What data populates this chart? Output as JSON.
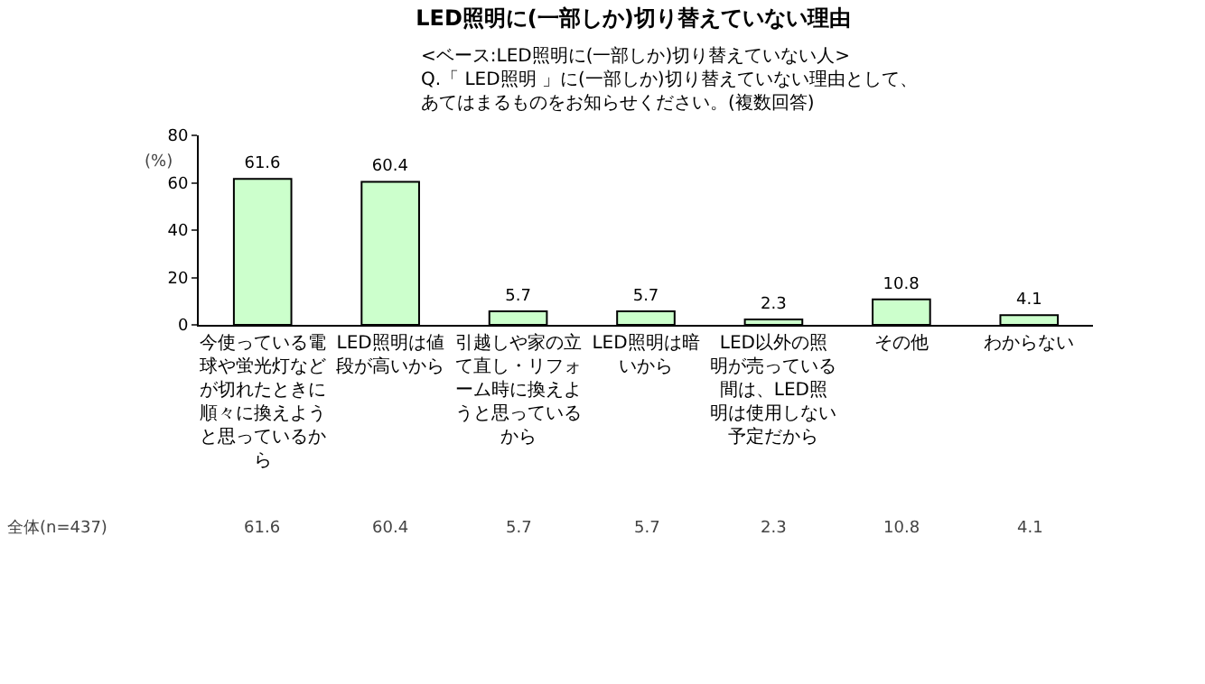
{
  "chart_data": {
    "type": "bar",
    "title": "LED照明に(一部しか)切り替えていない理由",
    "subtitle": "<ベース:LED照明に(一部しか)切り替えていない人>",
    "ylabel": "(%)",
    "annotations": [
      "Q.「 LED照明 」に(一部しか)切り替えていない理由として、あてはまるものをお知らせください。(複数回答)",
      "全体(n=437)"
    ],
    "categories": [
      "今使っている電球や蛍光灯などが切れたときに順々に換えようと思っているから",
      "LED照明は値段が高いから",
      "引越しや家の立て直し・リフォーム時に換えようと思っているから",
      "LED照明は暗いから",
      "LED以外の照明が売っている間は、LED照明は使用しない予定だから",
      "その他",
      "わからない"
    ],
    "values": [
      61.6,
      60.4,
      5.7,
      5.7,
      2.3,
      10.8,
      4.1
    ],
    "value_labels": [
      "61.6",
      "60.4",
      "5.7",
      "5.7",
      "2.3",
      "10.8",
      "4.1"
    ],
    "color": "#ccffcc",
    "ylim": [
      0,
      80
    ],
    "yticks": [
      0,
      20,
      40,
      60,
      80
    ],
    "grid": false,
    "data_labels": true
  }
}
